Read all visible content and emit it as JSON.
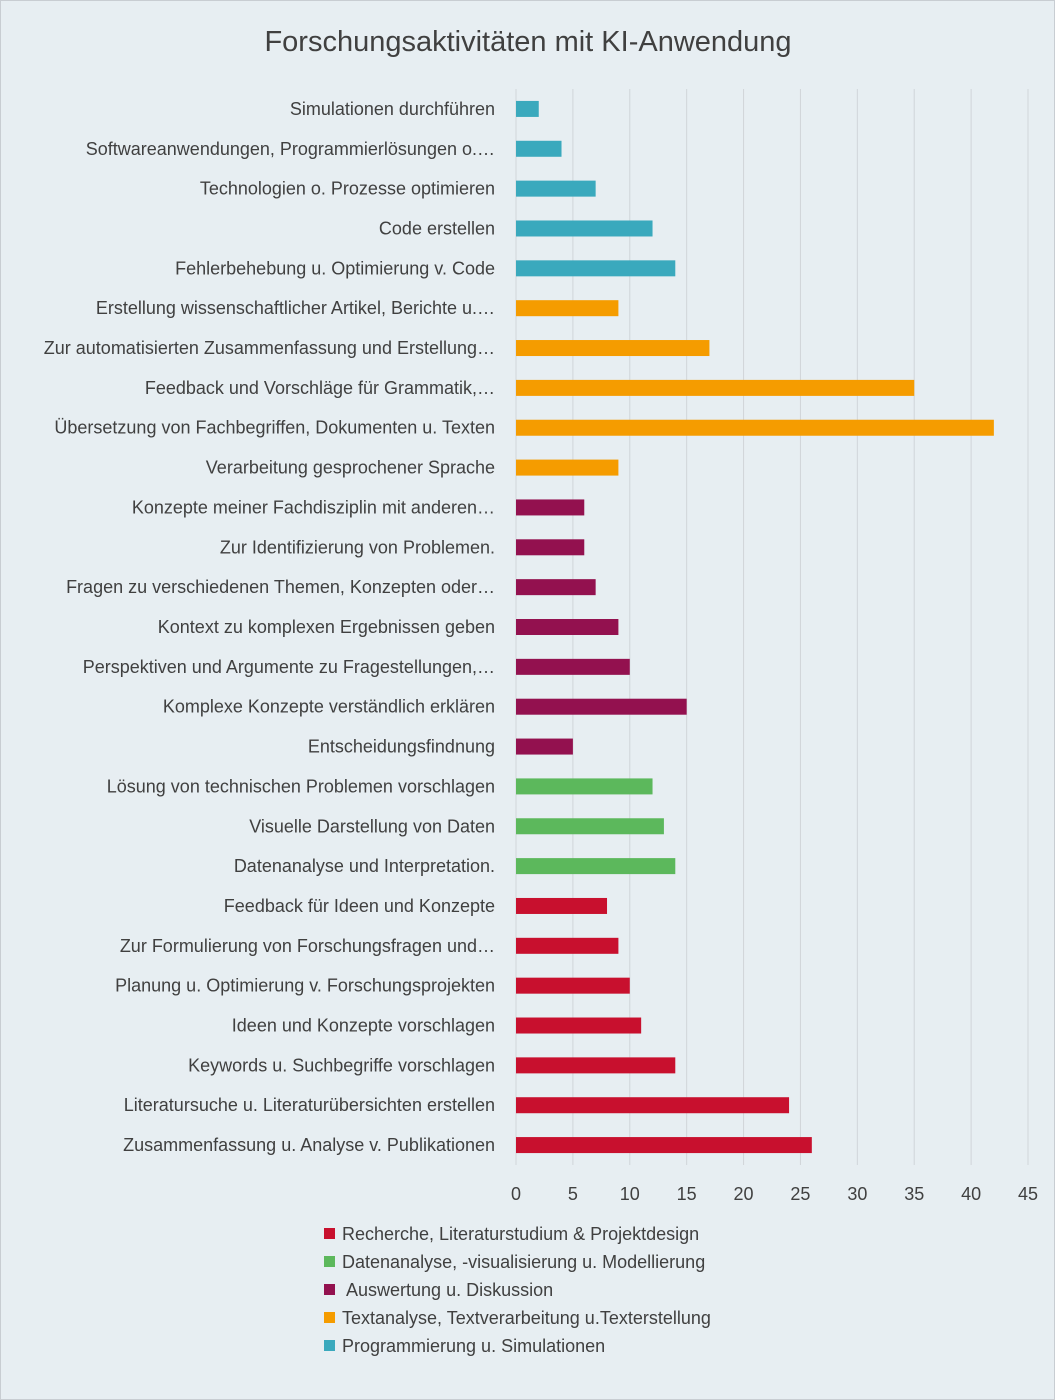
{
  "chart_data": {
    "type": "bar",
    "orientation": "horizontal",
    "title": "Forschungsaktivitäten mit KI-Anwendung",
    "xlabel": "",
    "ylabel": "",
    "xlim": [
      0,
      45
    ],
    "xticks": [
      0,
      5,
      10,
      15,
      20,
      25,
      30,
      35,
      40,
      45
    ],
    "grid": true,
    "legend_position": "bottom",
    "colors": {
      "research": "#c8102e",
      "data": "#5cb85c",
      "discussion": "#93114f",
      "text": "#f59c00",
      "programming": "#3aa9bd"
    },
    "legend": [
      {
        "label": "Recherche, Literaturstudium & Projektdesign",
        "color": "#c8102e"
      },
      {
        "label": "Datenanalyse, -visualisierung u. Modellierung",
        "color": "#5cb85c"
      },
      {
        "label": " Auswertung u. Diskussion",
        "color": "#93114f"
      },
      {
        "label": "Textanalyse, Textverarbeitung u.Texterstellung",
        "color": "#f59c00"
      },
      {
        "label": "Programmierung u. Simulationen",
        "color": "#3aa9bd"
      }
    ],
    "bars": [
      {
        "label": "Simulationen durchführen",
        "value": 2,
        "color": "#3aa9bd"
      },
      {
        "label": "Softwareanwendungen, Programmierlösungen o.…",
        "value": 4,
        "color": "#3aa9bd"
      },
      {
        "label": "Technologien o. Prozesse optimieren",
        "value": 7,
        "color": "#3aa9bd"
      },
      {
        "label": "Code erstellen",
        "value": 12,
        "color": "#3aa9bd"
      },
      {
        "label": "Fehlerbehebung u. Optimierung v. Code",
        "value": 14,
        "color": "#3aa9bd"
      },
      {
        "label": "Erstellung wissenschaftlicher Artikel, Berichte u.…",
        "value": 9,
        "color": "#f59c00"
      },
      {
        "label": "Zur automatisierten Zusammenfassung und Erstellung…",
        "value": 17,
        "color": "#f59c00"
      },
      {
        "label": "Feedback und Vorschläge für Grammatik,…",
        "value": 35,
        "color": "#f59c00"
      },
      {
        "label": "Übersetzung von Fachbegriffen, Dokumenten u. Texten",
        "value": 42,
        "color": "#f59c00"
      },
      {
        "label": "Verarbeitung gesprochener Sprache",
        "value": 9,
        "color": "#f59c00"
      },
      {
        "label": "Konzepte meiner Fachdisziplin mit anderen…",
        "value": 6,
        "color": "#93114f"
      },
      {
        "label": "Zur Identifizierung von Problemen.",
        "value": 6,
        "color": "#93114f"
      },
      {
        "label": "Fragen zu verschiedenen Themen, Konzepten oder…",
        "value": 7,
        "color": "#93114f"
      },
      {
        "label": "Kontext zu komplexen Ergebnissen geben",
        "value": 9,
        "color": "#93114f"
      },
      {
        "label": "Perspektiven und Argumente zu Fragestellungen,…",
        "value": 10,
        "color": "#93114f"
      },
      {
        "label": "Komplexe Konzepte verständlich erklären",
        "value": 15,
        "color": "#93114f"
      },
      {
        "label": "Entscheidungsfindnung",
        "value": 5,
        "color": "#93114f"
      },
      {
        "label": "Lösung von technischen Problemen vorschlagen",
        "value": 12,
        "color": "#5cb85c"
      },
      {
        "label": "Visuelle Darstellung von Daten",
        "value": 13,
        "color": "#5cb85c"
      },
      {
        "label": "Datenanalyse und Interpretation.",
        "value": 14,
        "color": "#5cb85c"
      },
      {
        "label": "Feedback für  Ideen und Konzepte",
        "value": 8,
        "color": "#c8102e"
      },
      {
        "label": "Zur Formulierung von Forschungsfragen und…",
        "value": 9,
        "color": "#c8102e"
      },
      {
        "label": "Planung u. Optimierung v. Forschungsprojekten",
        "value": 10,
        "color": "#c8102e"
      },
      {
        "label": "Ideen und Konzepte vorschlagen",
        "value": 11,
        "color": "#c8102e"
      },
      {
        "label": "Keywords u. Suchbegriffe vorschlagen",
        "value": 14,
        "color": "#c8102e"
      },
      {
        "label": "Literatursuche u. Literaturübersichten erstellen",
        "value": 24,
        "color": "#c8102e"
      },
      {
        "label": "Zusammenfassung u. Analyse v. Publikationen",
        "value": 26,
        "color": "#c8102e"
      }
    ]
  }
}
